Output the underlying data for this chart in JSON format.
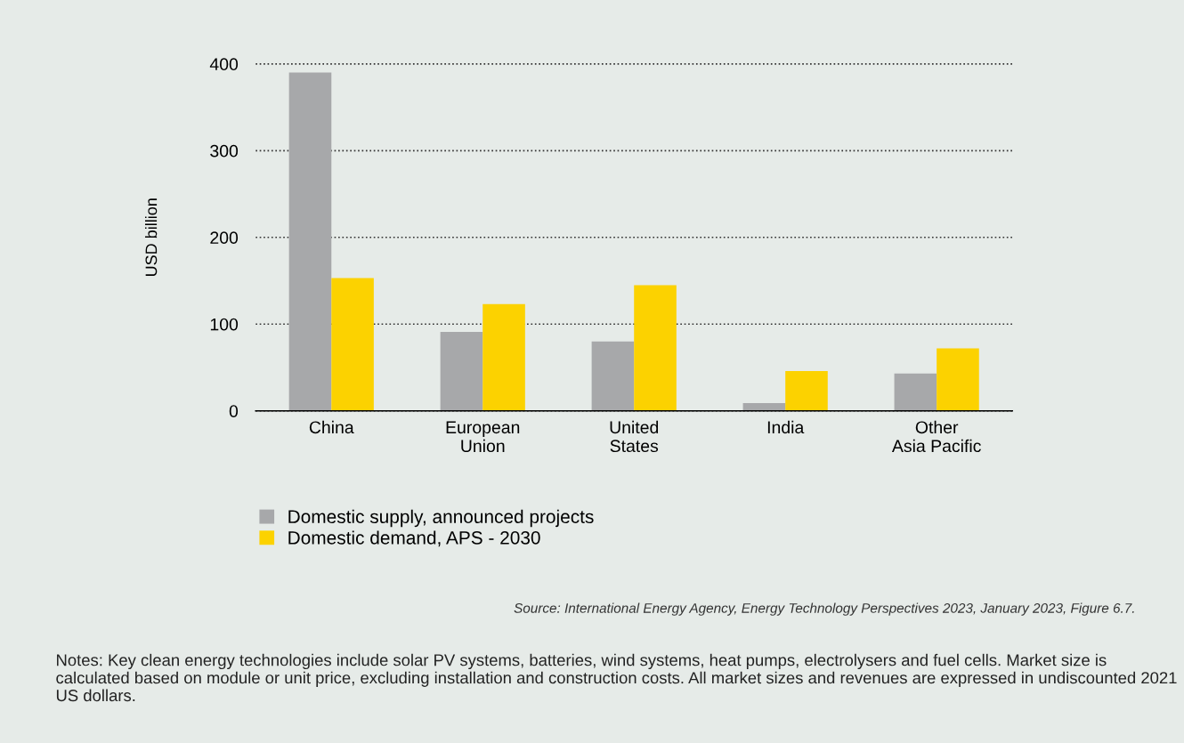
{
  "chart_data": {
    "type": "bar",
    "categories": [
      "China",
      "European\nUnion",
      "United\nStates",
      "India",
      "Other\nAsia Pacific"
    ],
    "series": [
      {
        "name": "Domestic supply, announced projects",
        "color": "#a7a8aa",
        "values": [
          390,
          91,
          80,
          9,
          43
        ]
      },
      {
        "name": "Domestic demand, APS - 2030",
        "color": "#fcd200",
        "values": [
          153,
          123,
          145,
          46,
          72
        ]
      }
    ],
    "ylabel": "USD billion",
    "ylim": [
      0,
      400
    ],
    "yticks": [
      0,
      100,
      200,
      300,
      400
    ],
    "grid": "y",
    "legend": "bottom left",
    "annotations": [
      "Source: International Energy Agency, Energy Technology Perspectives 2023, January 2023, Figure 6.7.",
      "Notes: Key clean energy technologies include solar PV systems, batteries, wind systems, heat pumps, electrolysers and fuel cells. Market size is calculated based on module or unit price, excluding installation and construction costs. All market sizes and revenues are expressed in undiscounted 2021 US dollars."
    ]
  }
}
